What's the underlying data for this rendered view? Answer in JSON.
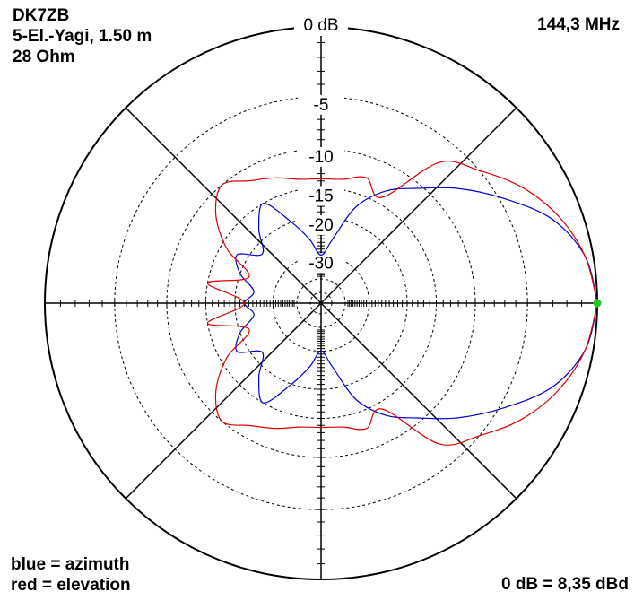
{
  "header": {
    "callsign": "DK7ZB",
    "antenna": "5-El.-Yagi, 1.50 m",
    "impedance": "28 Ohm",
    "frequency": "144,3 MHz"
  },
  "legend": {
    "blue": "blue = azimuth",
    "red": "red = elevation"
  },
  "reference": "0 dB = 8,35 dBd",
  "colors": {
    "azimuth": "#0000cc",
    "elevation": "#dd0000",
    "marker": "#22cc22",
    "grid": "#000000"
  },
  "chart_data": {
    "type": "polar",
    "scale": "logarithmic dB",
    "rings": [
      {
        "db": 0,
        "label": "0 dB"
      },
      {
        "db": -5,
        "label": "-5"
      },
      {
        "db": -10,
        "label": "-10"
      },
      {
        "db": -15,
        "label": "-15"
      },
      {
        "db": -20,
        "label": "-20"
      },
      {
        "db": -30,
        "label": "-30"
      }
    ],
    "grid": true,
    "spokes_deg": [
      0,
      45,
      90,
      135,
      180,
      225,
      270,
      315
    ],
    "series": [
      {
        "name": "azimuth",
        "color": "blue",
        "angle_deg": [
          0,
          10,
          20,
          30,
          40,
          50,
          60,
          70,
          80,
          90,
          100,
          110,
          120,
          130,
          140,
          150,
          160,
          170,
          180
        ],
        "gain_db": [
          0,
          -0.5,
          -2,
          -4.7,
          -7.5,
          -10.5,
          -13,
          -17,
          -25,
          -30,
          -25,
          -20,
          -15,
          -18,
          -22,
          -18,
          -20,
          -24,
          -22
        ]
      },
      {
        "name": "elevation",
        "color": "red",
        "angle_deg": [
          0,
          10,
          20,
          30,
          40,
          50,
          60,
          70,
          80,
          90,
          100,
          110,
          120,
          130,
          140,
          150,
          160,
          170,
          180
        ],
        "gain_db": [
          0,
          -0.5,
          -1.5,
          -3,
          -5,
          -7,
          -14,
          -12.5,
          -13.5,
          -13.7,
          -13.5,
          -12.5,
          -11.5,
          -10,
          -12,
          -16,
          -22,
          -15,
          -22
        ]
      }
    ],
    "marker": {
      "angle_deg": 0,
      "gain_db": 0
    }
  }
}
